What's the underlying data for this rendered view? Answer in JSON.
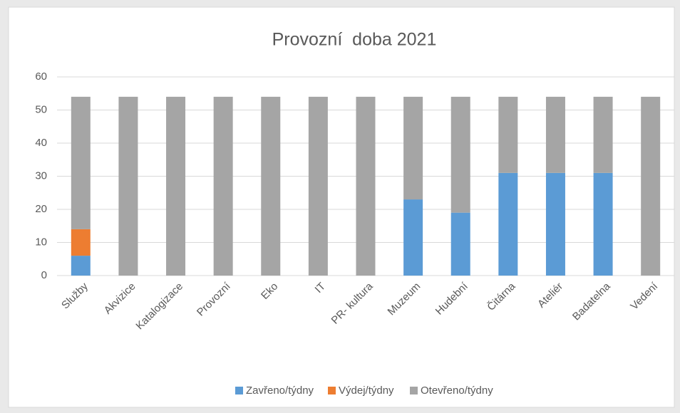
{
  "chart_data": {
    "type": "stacked_bar",
    "title": "Provozní  doba 2021",
    "categories": [
      "Služby",
      "Akvizice",
      "Katalogizace",
      "Provozní",
      "Eko",
      "IT",
      "PR- kultura",
      "Muzeum",
      "Hudební",
      "Čitárna",
      "Ateliér",
      "Badatelna",
      "Vedení"
    ],
    "series": [
      {
        "name": "Zavřeno/týdny",
        "color": "#5b9bd5",
        "values": [
          6,
          0,
          0,
          0,
          0,
          0,
          0,
          23,
          19,
          31,
          31,
          31,
          0
        ]
      },
      {
        "name": "Výdej/týdny",
        "color": "#ed7d31",
        "values": [
          8,
          0,
          0,
          0,
          0,
          0,
          0,
          0,
          0,
          0,
          0,
          0,
          0
        ]
      },
      {
        "name": "Otevřeno/týdny",
        "color": "#a5a5a5",
        "values": [
          40,
          54,
          54,
          54,
          54,
          54,
          54,
          31,
          35,
          23,
          23,
          23,
          54
        ]
      }
    ],
    "ylim": [
      0,
      60
    ],
    "yticks": [
      0,
      10,
      20,
      30,
      40,
      50,
      60
    ],
    "grid": true,
    "legend": "bottom"
  }
}
